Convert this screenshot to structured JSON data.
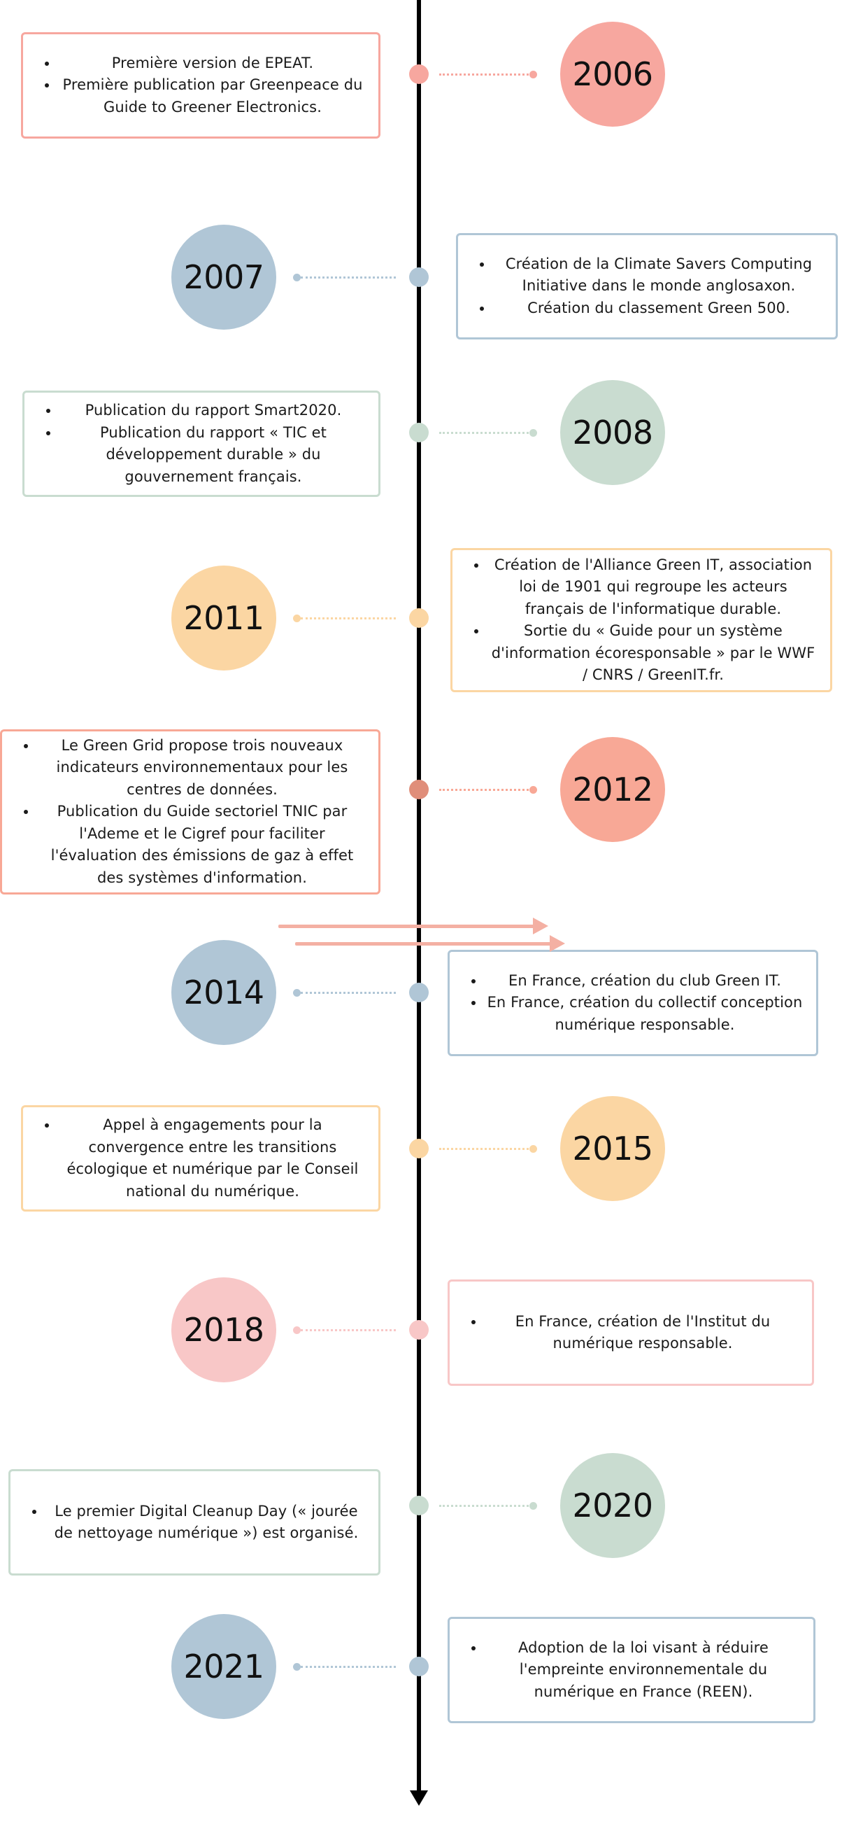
{
  "entries": [
    {
      "year": "2006",
      "color": "#f7a79f",
      "items": [
        "Première version de EPEAT.",
        "Première publication par Greenpeace du Guide to Greener Electronics."
      ]
    },
    {
      "year": "2007",
      "color": "#b0c6d6",
      "items": [
        "Création de la Climate Savers Computing Initiative dans le monde anglosaxon.",
        "Création du classement Green 500."
      ]
    },
    {
      "year": "2008",
      "color": "#c9dcd0",
      "items": [
        "Publication du rapport Smart2020.",
        "Publication du rapport « TIC et développement durable » du gouvernement français."
      ]
    },
    {
      "year": "2011",
      "color": "#fbd6a3",
      "items": [
        "Création de l'Alliance Green IT, association loi de 1901 qui regroupe les acteurs français de l'informatique durable.",
        "Sortie du « Guide pour un système d'information écoresponsable » par le WWF / CNRS / GreenIT.fr."
      ]
    },
    {
      "year": "2012",
      "color": "#f8a896",
      "node_color": "#e08e7a",
      "items": [
        "Le Green Grid propose trois nouveaux indicateurs environnementaux pour les centres de données.",
        "Publication du Guide sectoriel TNIC par l'Ademe et le Cigref pour faciliter l'évaluation des émissions de gaz à effet des systèmes d'information."
      ]
    },
    {
      "year": "2014",
      "color": "#b0c6d6",
      "items": [
        "En France, création du club Green IT.",
        "En France, création du collectif conception numérique responsable."
      ]
    },
    {
      "year": "2015",
      "color": "#fbd6a3",
      "items": [
        "Appel à engagements pour la convergence entre les transitions écologique et numérique par le Conseil national du numérique."
      ]
    },
    {
      "year": "2018",
      "color": "#f8c7c7",
      "items": [
        "En France, création de l'Institut du numérique responsable."
      ]
    },
    {
      "year": "2020",
      "color": "#c9dcd0",
      "items": [
        "Le premier Digital Cleanup Day (« jourée de nettoyage numérique ») est organisé."
      ]
    },
    {
      "year": "2021",
      "color": "#b0c6d6",
      "items": [
        "Adoption de la loi visant à réduire l'empreinte environnementale du numérique en France (REEN)."
      ]
    }
  ],
  "arrow_color": "#f4b0a3"
}
